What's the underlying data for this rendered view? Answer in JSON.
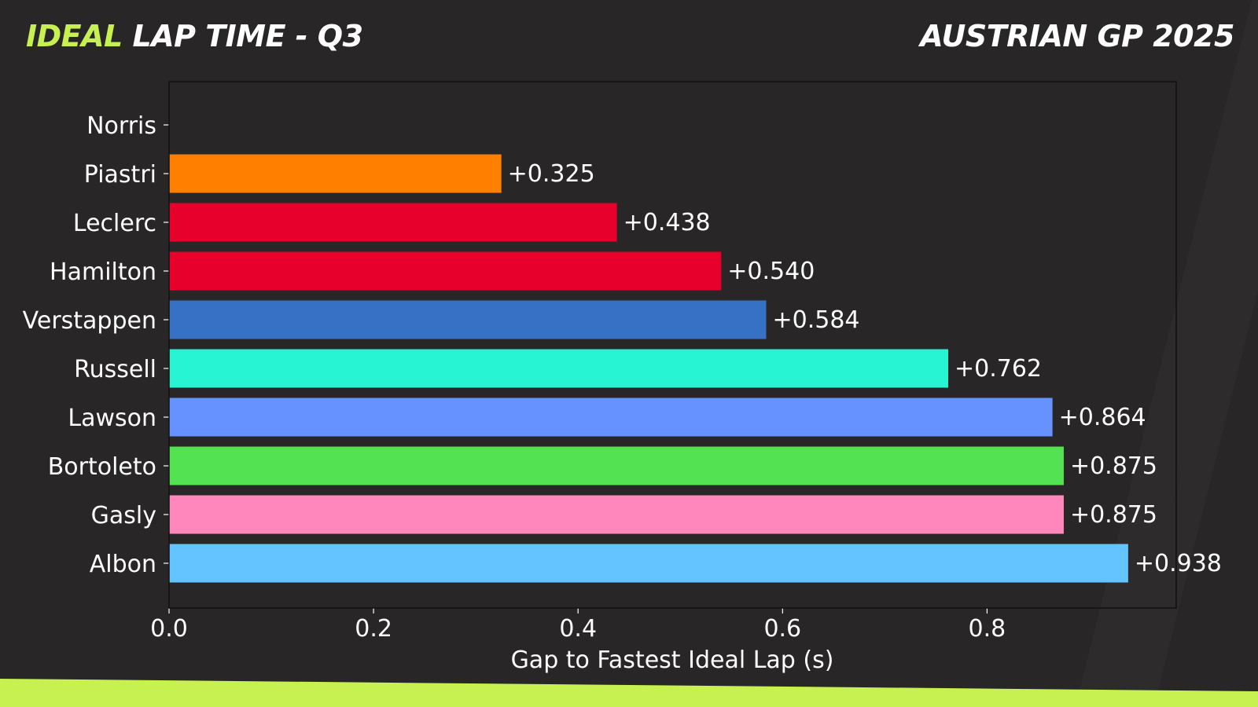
{
  "header": {
    "title_highlight": "IDEAL",
    "title_rest": "LAP TIME - Q3",
    "event": "AUSTRIAN GP 2025"
  },
  "colors": {
    "background": "#282626",
    "accent": "#c6f150",
    "axes_face": "#282626",
    "text": "#ffffff"
  },
  "chart_data": {
    "type": "bar",
    "orientation": "horizontal",
    "xlabel": "Gap to Fastest Ideal Lap (s)",
    "xlim": [
      0,
      0.985
    ],
    "xticks": [
      0.0,
      0.2,
      0.4,
      0.6,
      0.8
    ],
    "grid": false,
    "categories": [
      "Norris",
      "Piastri",
      "Leclerc",
      "Hamilton",
      "Verstappen",
      "Russell",
      "Lawson",
      "Bortoleto",
      "Gasly",
      "Albon"
    ],
    "values": [
      0.0,
      0.325,
      0.438,
      0.54,
      0.584,
      0.762,
      0.864,
      0.875,
      0.875,
      0.938
    ],
    "labels": [
      "",
      "+0.325",
      "+0.438",
      "+0.540",
      "+0.584",
      "+0.762",
      "+0.864",
      "+0.875",
      "+0.875",
      "+0.938"
    ],
    "bar_colors": [
      "#ff8000",
      "#ff8000",
      "#e8002d",
      "#e8002d",
      "#3671c6",
      "#27f4d2",
      "#6692ff",
      "#52e252",
      "#ff87bc",
      "#64c4ff"
    ]
  }
}
